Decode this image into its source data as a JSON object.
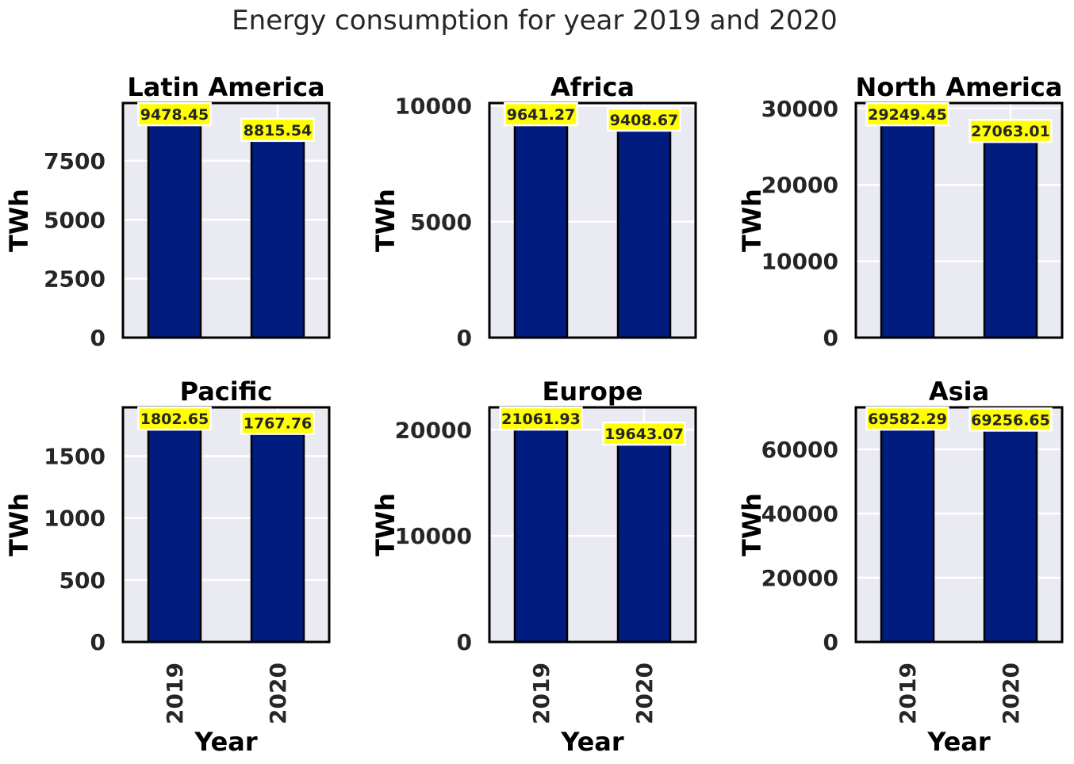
{
  "title": "Energy consumption for year 2019 and 2020",
  "colors": {
    "bar": "#001c7f",
    "plot_bg": "#eaeaf2",
    "label_bg": "#ffff00",
    "grid": "#ffffff"
  },
  "chart_data": [
    {
      "type": "bar",
      "title": "Latin America",
      "categories": [
        "2019",
        "2020"
      ],
      "values": [
        9478.45,
        8815.54
      ],
      "value_labels": [
        "9478.45",
        "8815.54"
      ],
      "xlabel": "",
      "ylabel": "TWh",
      "ylim": [
        0,
        9952
      ],
      "yticks": [
        0,
        2500,
        5000,
        7500
      ],
      "ytick_labels": [
        "0",
        "2500",
        "5000",
        "7500"
      ],
      "grid": true
    },
    {
      "type": "bar",
      "title": "Africa",
      "categories": [
        "2019",
        "2020"
      ],
      "values": [
        9641.27,
        9408.67
      ],
      "value_labels": [
        "9641.27",
        "9408.67"
      ],
      "xlabel": "",
      "ylabel": "TWh",
      "ylim": [
        0,
        10123
      ],
      "yticks": [
        0,
        5000,
        10000
      ],
      "ytick_labels": [
        "0",
        "5000",
        "10000"
      ],
      "grid": true
    },
    {
      "type": "bar",
      "title": "North America",
      "categories": [
        "2019",
        "2020"
      ],
      "values": [
        29249.45,
        27063.01
      ],
      "value_labels": [
        "29249.45",
        "27063.01"
      ],
      "xlabel": "",
      "ylabel": "TWh",
      "ylim": [
        0,
        30712
      ],
      "yticks": [
        0,
        10000,
        20000,
        30000
      ],
      "ytick_labels": [
        "0",
        "10000",
        "20000",
        "30000"
      ],
      "grid": true
    },
    {
      "type": "bar",
      "title": "Pacific",
      "categories": [
        "2019",
        "2020"
      ],
      "values": [
        1802.65,
        1767.76
      ],
      "value_labels": [
        "1802.65",
        "1767.76"
      ],
      "xlabel": "Year",
      "ylabel": "TWh",
      "ylim": [
        0,
        1893
      ],
      "yticks": [
        0,
        500,
        1000,
        1500
      ],
      "ytick_labels": [
        "0",
        "500",
        "1000",
        "1500"
      ],
      "grid": true
    },
    {
      "type": "bar",
      "title": "Europe",
      "categories": [
        "2019",
        "2020"
      ],
      "values": [
        21061.93,
        19643.07
      ],
      "value_labels": [
        "21061.93",
        "19643.07"
      ],
      "xlabel": "Year",
      "ylabel": "TWh",
      "ylim": [
        0,
        22115
      ],
      "yticks": [
        0,
        10000,
        20000
      ],
      "ytick_labels": [
        "0",
        "10000",
        "20000"
      ],
      "grid": true
    },
    {
      "type": "bar",
      "title": "Asia",
      "categories": [
        "2019",
        "2020"
      ],
      "values": [
        69582.29,
        69256.65
      ],
      "value_labels": [
        "69582.29",
        "69256.65"
      ],
      "xlabel": "Year",
      "ylabel": "TWh",
      "ylim": [
        0,
        73061
      ],
      "yticks": [
        0,
        20000,
        40000,
        60000
      ],
      "ytick_labels": [
        "0",
        "20000",
        "40000",
        "60000"
      ],
      "grid": true
    }
  ]
}
